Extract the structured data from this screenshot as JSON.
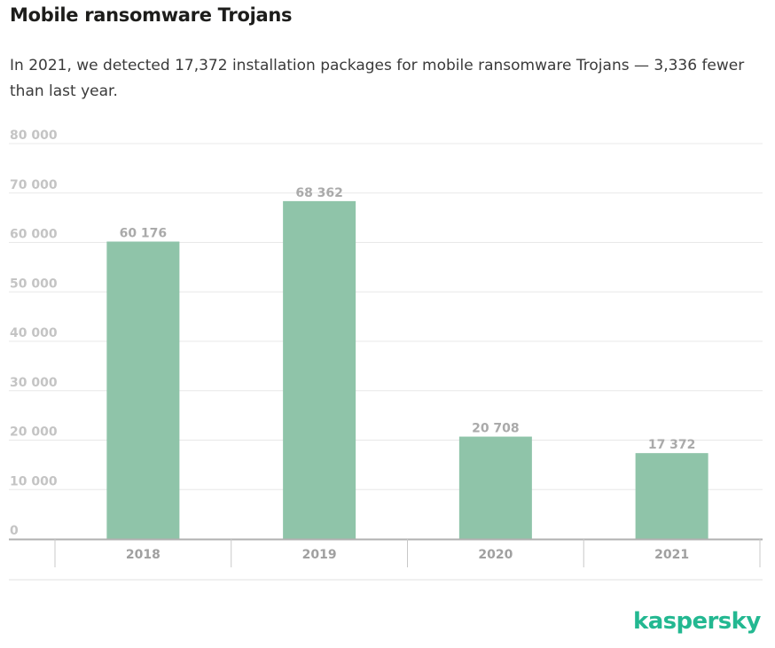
{
  "header": {
    "title": "Mobile ransomware Trojans",
    "subtitle": "In 2021, we detected 17,372 installation packages for mobile ransomware Trojans — 3,336 fewer than last year."
  },
  "chart_data": {
    "type": "bar",
    "categories": [
      "2018",
      "2019",
      "2020",
      "2021"
    ],
    "values": [
      60176,
      68362,
      20708,
      17372
    ],
    "value_labels": [
      "60 176",
      "68 362",
      "20 708",
      "17 372"
    ],
    "ylim": [
      0,
      80000
    ],
    "yticks": [
      0,
      10000,
      20000,
      30000,
      40000,
      50000,
      60000,
      70000,
      80000
    ],
    "ytick_labels": [
      "0",
      "10 000",
      "20 000",
      "30 000",
      "40 000",
      "50 000",
      "60 000",
      "70 000",
      "80 000"
    ],
    "grid": true,
    "bar_color": "#8fc4a9"
  },
  "branding": {
    "logo_text": "kaspersky",
    "logo_color": "#23b891"
  }
}
